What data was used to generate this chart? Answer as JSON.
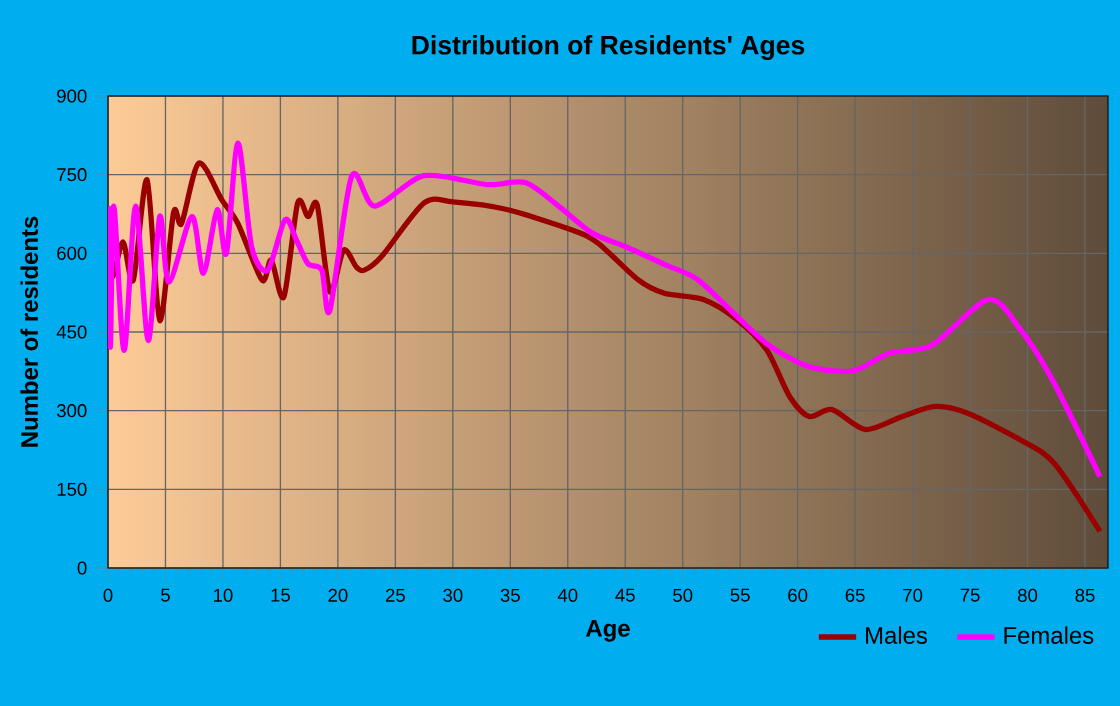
{
  "chart_data": {
    "type": "line",
    "title": "Distribution of Residents' Ages",
    "xlabel": "Age",
    "ylabel": "Number of residents",
    "xlim": [
      0,
      87
    ],
    "xticks": [
      0,
      5,
      10,
      15,
      20,
      25,
      30,
      35,
      40,
      45,
      50,
      55,
      60,
      65,
      70,
      75,
      80,
      85
    ],
    "ylim": [
      0,
      900
    ],
    "yticks": [
      0,
      150,
      300,
      450,
      600,
      750,
      900
    ],
    "grid": true,
    "legend": "bottom",
    "series": [
      {
        "name": "Males",
        "color": "#990000",
        "x": [
          0,
          0.4,
          1.3,
          2.2,
          3.4,
          4.5,
          5.7,
          6.4,
          7.9,
          9.9,
          11.3,
          13.4,
          14.2,
          15.3,
          16.5,
          17.4,
          18.2,
          19.3,
          20.5,
          21.6,
          22.3,
          23.8,
          27.5,
          30,
          34.6,
          40.3,
          42.6,
          46.1,
          48.4,
          51.8,
          54.7,
          57.3,
          59.3,
          61,
          63,
          65.9,
          69.1,
          72,
          74.8,
          79.4,
          82.3,
          86.3
        ],
        "values": [
          625,
          555,
          622,
          549,
          740,
          472,
          677,
          657,
          772,
          702,
          657,
          549,
          587,
          517,
          696,
          670,
          692,
          527,
          606,
          574,
          568,
          594,
          696,
          698,
          684,
          645,
          620,
          550,
          524,
          512,
          474,
          416,
          327,
          289,
          302,
          264,
          289,
          308,
          295,
          244,
          200,
          70
        ]
      },
      {
        "name": "Females",
        "color": "#ff00ff",
        "x": [
          0,
          0.2,
          0.5,
          1.4,
          2.4,
          3.5,
          4.5,
          5.3,
          7.3,
          8.3,
          9.5,
          10.3,
          11.3,
          12.5,
          13.9,
          15.4,
          16.4,
          17.4,
          18.6,
          19.3,
          21.2,
          23.2,
          27.5,
          33,
          36.3,
          39.2,
          42.1,
          44.9,
          48.4,
          51.3,
          54.7,
          57.6,
          61,
          64.8,
          68,
          71.7,
          76.6,
          79.4,
          82.3,
          86.3
        ],
        "values": [
          690,
          421,
          690,
          415,
          690,
          434,
          670,
          545,
          670,
          562,
          683,
          600,
          810,
          612,
          568,
          664,
          625,
          580,
          568,
          491,
          747,
          690,
          748,
          731,
          735,
          690,
          639,
          614,
          579,
          550,
          480,
          423,
          384,
          376,
          410,
          425,
          512,
          454,
          353,
          174
        ]
      }
    ]
  }
}
